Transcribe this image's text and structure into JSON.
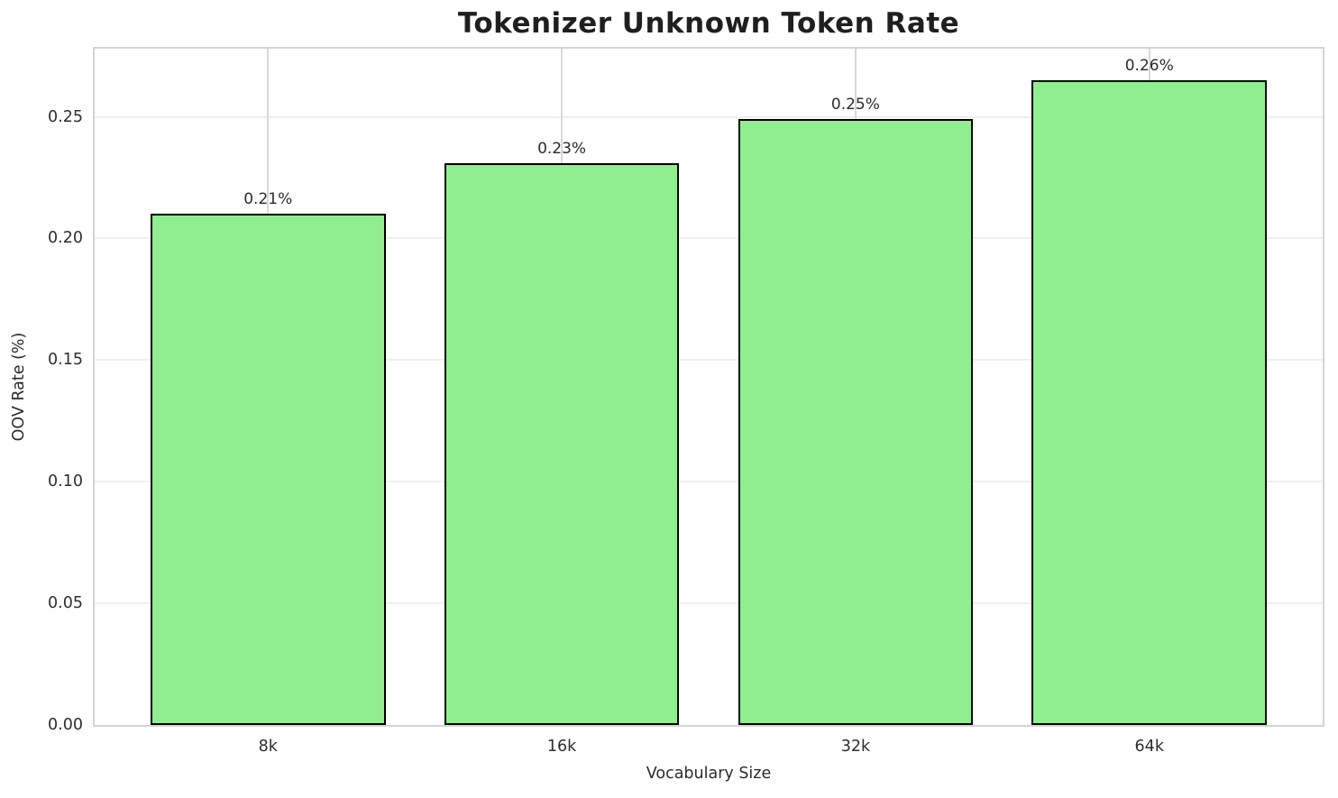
{
  "chart_data": {
    "type": "bar",
    "title": "Tokenizer Unknown Token Rate",
    "xlabel": "Vocabulary Size",
    "ylabel": "OOV Rate (%)",
    "categories": [
      "8k",
      "16k",
      "32k",
      "64k"
    ],
    "values": [
      0.21,
      0.231,
      0.249,
      0.265
    ],
    "bar_labels": [
      "0.21%",
      "0.23%",
      "0.25%",
      "0.26%"
    ],
    "ytick_values": [
      0.0,
      0.05,
      0.1,
      0.15,
      0.2,
      0.25
    ],
    "ytick_labels": [
      "0.00",
      "0.05",
      "0.10",
      "0.15",
      "0.20",
      "0.25"
    ],
    "ylim": [
      0,
      0.278
    ],
    "grid": true,
    "legend": "none",
    "bar_color": "#90EE90",
    "bar_edge_color": "#000000",
    "grid_color_h": "#efefef",
    "grid_color_v": "#d9d9d9",
    "spine_color": "#d4d4d4",
    "text_color": "#2b2b2b"
  }
}
